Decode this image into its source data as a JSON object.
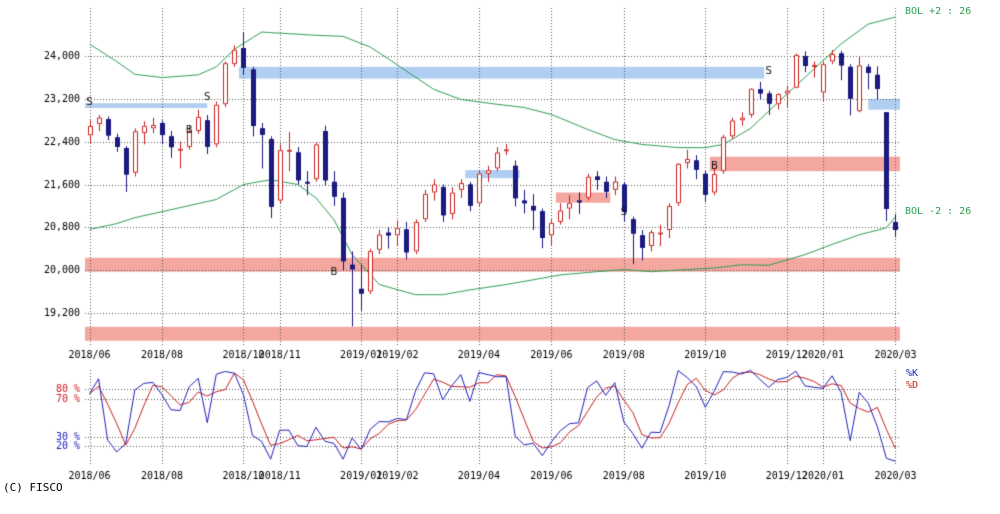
{
  "page": {
    "copyright": "(C) FISCO",
    "background": "#ffffff"
  },
  "colors": {
    "background": "#ffffff",
    "grid": "#606060",
    "axis_text": "#000000",
    "up_candle": "#cc2222",
    "up_candle_fill": "#ffffff",
    "down_candle": "#1a1a80",
    "bollinger": "#2f9e54",
    "pink_zone": "#f3a79f",
    "blue_zone": "#b0cef2",
    "signal": "#111111",
    "stoch_k": "#2222bb",
    "stoch_d": "#cc2222"
  },
  "chart_data": {
    "type": "candlestick",
    "description": "Weekly candlestick chart with Bollinger bands, support/resistance zones, B/S signals and stochastic %K/%D sub-chart",
    "panels": [
      {
        "name": "price",
        "type": "candlestick",
        "ylim": [
          18600,
          24900
        ],
        "y_ticks": [
          24000,
          23200,
          22400,
          21600,
          20800,
          20000,
          19200
        ],
        "x_ticks": [
          {
            "label": "2018/06",
            "index": 0
          },
          {
            "label": "2018/08",
            "index": 8
          },
          {
            "label": "2018/10",
            "index": 17
          },
          {
            "label": "2018/11",
            "index": 21
          },
          {
            "label": "2019/01",
            "index": 30
          },
          {
            "label": "2019/02",
            "index": 34
          },
          {
            "label": "2019/04",
            "index": 43
          },
          {
            "label": "2019/06",
            "index": 51
          },
          {
            "label": "2019/08",
            "index": 59
          },
          {
            "label": "2019/10",
            "index": 68
          },
          {
            "label": "2019/12",
            "index": 77
          },
          {
            "label": "2020/01",
            "index": 81
          },
          {
            "label": "2020/03",
            "index": 89
          }
        ],
        "ohlc": [
          [
            22520,
            22800,
            22380,
            22695
          ],
          [
            22730,
            22900,
            22600,
            22852
          ],
          [
            22820,
            22870,
            22430,
            22517
          ],
          [
            22480,
            22550,
            22210,
            22305
          ],
          [
            22280,
            22320,
            21462,
            21788
          ],
          [
            21820,
            22650,
            21750,
            22597
          ],
          [
            22560,
            22780,
            22350,
            22698
          ],
          [
            22650,
            22850,
            22560,
            22713
          ],
          [
            22750,
            22800,
            22350,
            22525
          ],
          [
            22500,
            22600,
            22100,
            22298
          ],
          [
            22250,
            22400,
            21900,
            22270
          ],
          [
            22300,
            22700,
            22250,
            22602
          ],
          [
            22600,
            23000,
            22550,
            22865
          ],
          [
            22800,
            22900,
            22170,
            22307
          ],
          [
            22350,
            23150,
            22300,
            23094
          ],
          [
            23100,
            23900,
            23050,
            23869
          ],
          [
            23850,
            24200,
            23800,
            24120
          ],
          [
            24150,
            24448,
            23650,
            23784
          ],
          [
            23750,
            23800,
            22500,
            22695
          ],
          [
            22650,
            22750,
            21900,
            22532
          ],
          [
            22450,
            22500,
            20972,
            21185
          ],
          [
            21300,
            22350,
            21250,
            22243
          ],
          [
            22250,
            22580,
            21850,
            22250
          ],
          [
            22200,
            22300,
            21600,
            21680
          ],
          [
            21650,
            21850,
            21400,
            21647
          ],
          [
            21700,
            22400,
            21650,
            22351
          ],
          [
            22600,
            22700,
            21580,
            21679
          ],
          [
            21650,
            21850,
            21200,
            21375
          ],
          [
            21350,
            21450,
            20000,
            20166
          ],
          [
            20100,
            20350,
            18948,
            20015
          ],
          [
            19650,
            20100,
            19241,
            19562
          ],
          [
            19600,
            20400,
            19550,
            20360
          ],
          [
            20380,
            20750,
            20300,
            20666
          ],
          [
            20700,
            20800,
            20400,
            20649
          ],
          [
            20650,
            20930,
            20450,
            20788
          ],
          [
            20760,
            20900,
            20200,
            20333
          ],
          [
            20350,
            20950,
            20300,
            20901
          ],
          [
            20950,
            21500,
            20900,
            21425
          ],
          [
            21450,
            21700,
            21300,
            21602
          ],
          [
            21550,
            21600,
            20900,
            21025
          ],
          [
            21050,
            21550,
            20950,
            21450
          ],
          [
            21500,
            21700,
            21350,
            21627
          ],
          [
            21600,
            21650,
            21100,
            21205
          ],
          [
            21250,
            21850,
            21200,
            21807
          ],
          [
            21800,
            21950,
            21650,
            21870
          ],
          [
            21900,
            22300,
            21850,
            22200
          ],
          [
            22250,
            22360,
            22150,
            22258
          ],
          [
            21950,
            22050,
            21190,
            21344
          ],
          [
            21300,
            21500,
            21060,
            21250
          ],
          [
            21200,
            21420,
            20750,
            21117
          ],
          [
            21100,
            21150,
            20410,
            20601
          ],
          [
            20650,
            20950,
            20450,
            20884
          ],
          [
            20900,
            21250,
            20850,
            21116
          ],
          [
            21150,
            21400,
            20950,
            21258
          ],
          [
            21300,
            21450,
            21050,
            21275
          ],
          [
            21350,
            21800,
            21300,
            21746
          ],
          [
            21750,
            21850,
            21500,
            21685
          ],
          [
            21650,
            21750,
            21350,
            21466
          ],
          [
            21500,
            21750,
            21400,
            21658
          ],
          [
            21600,
            21650,
            20900,
            21087
          ],
          [
            20950,
            21000,
            20110,
            20684
          ],
          [
            20650,
            20750,
            20184,
            20418
          ],
          [
            20450,
            20750,
            20350,
            20710
          ],
          [
            20700,
            20850,
            20450,
            20704
          ],
          [
            20750,
            21250,
            20600,
            21199
          ],
          [
            21250,
            22000,
            21200,
            21988
          ],
          [
            22000,
            22250,
            21900,
            22079
          ],
          [
            22050,
            22150,
            21700,
            21878
          ],
          [
            21800,
            21850,
            21276,
            21410
          ],
          [
            21450,
            21900,
            21400,
            21798
          ],
          [
            21850,
            22530,
            21800,
            22492
          ],
          [
            22500,
            22850,
            22450,
            22799
          ],
          [
            22800,
            22950,
            22700,
            22850
          ],
          [
            22900,
            23400,
            22850,
            23391
          ],
          [
            23380,
            23520,
            23200,
            23303
          ],
          [
            23300,
            23350,
            22900,
            23112
          ],
          [
            23100,
            23300,
            23000,
            23293
          ],
          [
            23300,
            23450,
            23050,
            23354
          ],
          [
            23410,
            24050,
            23400,
            24023
          ],
          [
            24000,
            24090,
            23700,
            23816
          ],
          [
            23830,
            23900,
            23600,
            23837
          ],
          [
            23320,
            23900,
            23150,
            23850
          ],
          [
            23900,
            24115,
            23850,
            24041
          ],
          [
            24050,
            24100,
            23550,
            23827
          ],
          [
            23800,
            23850,
            22892,
            23205
          ],
          [
            22970,
            23995,
            22950,
            23828
          ],
          [
            23800,
            23850,
            23380,
            23687
          ],
          [
            23650,
            23810,
            23190,
            23386
          ],
          [
            22950,
            22950,
            20916,
            21143
          ],
          [
            20900,
            21050,
            20613,
            20750
          ]
        ],
        "overlays": {
          "bollinger": {
            "period": 26,
            "stddev": 2,
            "upper_label": "BOL +2 : 26",
            "lower_label": "BOL -2 : 26",
            "upper_points": [
              [
                0,
                24225
              ],
              [
                3,
                23900
              ],
              [
                5,
                23660
              ],
              [
                8,
                23600
              ],
              [
                12,
                23650
              ],
              [
                14,
                23800
              ],
              [
                16,
                24130
              ],
              [
                19,
                24450
              ],
              [
                22,
                24420
              ],
              [
                25,
                24390
              ],
              [
                28,
                24370
              ],
              [
                31,
                24170
              ],
              [
                33,
                23950
              ],
              [
                35,
                23720
              ],
              [
                38,
                23380
              ],
              [
                41,
                23190
              ],
              [
                45,
                23100
              ],
              [
                48,
                23040
              ],
              [
                51,
                22910
              ],
              [
                55,
                22630
              ],
              [
                58,
                22440
              ],
              [
                61,
                22350
              ],
              [
                65,
                22290
              ],
              [
                68,
                22290
              ],
              [
                70,
                22350
              ],
              [
                73,
                22650
              ],
              [
                77,
                23290
              ],
              [
                80,
                23760
              ],
              [
                83,
                24230
              ],
              [
                86,
                24600
              ],
              [
                89,
                24730
              ]
            ],
            "lower_points": [
              [
                0,
                20760
              ],
              [
                3,
                20870
              ],
              [
                5,
                20980
              ],
              [
                9,
                21130
              ],
              [
                14,
                21320
              ],
              [
                17,
                21600
              ],
              [
                20,
                21690
              ],
              [
                23,
                21600
              ],
              [
                25,
                21350
              ],
              [
                27,
                20940
              ],
              [
                29,
                20290
              ],
              [
                32,
                19730
              ],
              [
                36,
                19540
              ],
              [
                39,
                19540
              ],
              [
                42,
                19630
              ],
              [
                46,
                19730
              ],
              [
                49,
                19820
              ],
              [
                52,
                19910
              ],
              [
                56,
                19970
              ],
              [
                59,
                20010
              ],
              [
                62,
                19970
              ],
              [
                66,
                20010
              ],
              [
                69,
                20040
              ],
              [
                72,
                20100
              ],
              [
                75,
                20090
              ],
              [
                79,
                20290
              ],
              [
                82,
                20480
              ],
              [
                85,
                20660
              ],
              [
                88,
                20790
              ],
              [
                89,
                21000
              ]
            ]
          },
          "zones": [
            {
              "color": "blue",
              "from": -1,
              "to": 12.5,
              "top": 23120,
              "bottom": 23030
            },
            {
              "color": "blue",
              "from": 17,
              "to": 74,
              "top": 23800,
              "bottom": 23580
            },
            {
              "color": "blue",
              "from": 86.5,
              "to": 95,
              "top": 23200,
              "bottom": 23000
            },
            {
              "color": "blue",
              "from": 42,
              "to": 47,
              "top": 21870,
              "bottom": 21720
            },
            {
              "color": "pink",
              "from": 52,
              "to": 57,
              "top": 21450,
              "bottom": 21260
            },
            {
              "color": "pink",
              "from": 69,
              "to": 95,
              "top": 22120,
              "bottom": 21850
            },
            {
              "color": "pink",
              "from": -1,
              "to": 95,
              "top": 20230,
              "bottom": 19970
            },
            {
              "color": "pink",
              "from": -1,
              "to": 95,
              "top": 18940,
              "bottom": 18680
            }
          ],
          "signals": [
            {
              "label": "S",
              "index": 0,
              "value": 23150
            },
            {
              "label": "B",
              "index": 11,
              "value": 22610
            },
            {
              "label": "S",
              "index": 13,
              "value": 23230
            },
            {
              "label": "B",
              "index": 27,
              "value": 19970
            },
            {
              "label": "S",
              "index": 59,
              "value": 21080
            },
            {
              "label": "B",
              "index": 69,
              "value": 21955
            },
            {
              "label": "S",
              "index": 75,
              "value": 23720
            }
          ]
        }
      },
      {
        "name": "stochastic",
        "type": "line",
        "ylim": [
          0,
          100
        ],
        "k_period": 9,
        "d_period": 3,
        "y_ticks": [
          {
            "value": 80,
            "label": "80 %",
            "color": "#cc2222"
          },
          {
            "value": 70,
            "label": "70 %",
            "color": "#cc2222"
          },
          {
            "value": 30,
            "label": "30 %",
            "color": "#2222bb"
          },
          {
            "value": 20,
            "label": "20 %",
            "color": "#2222bb"
          }
        ],
        "series_labels": {
          "k": "%K",
          "d": "%D"
        }
      }
    ]
  }
}
